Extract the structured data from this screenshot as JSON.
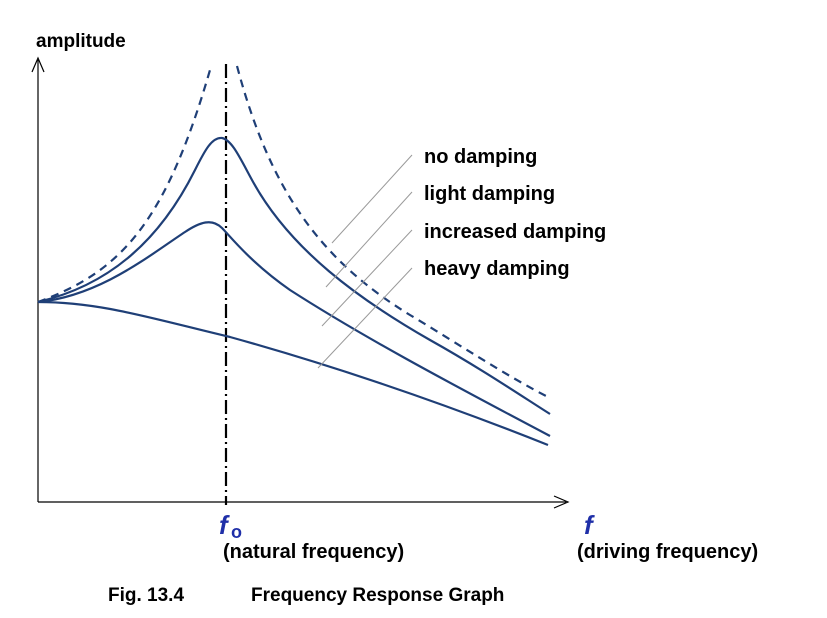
{
  "axes": {
    "y_label": "amplitude",
    "x_symbol": "f",
    "x_description": "(driving frequency)",
    "natural_symbol": "f",
    "natural_subscript": "o",
    "natural_description": "(natural frequency)"
  },
  "curves": [
    {
      "name": "no damping",
      "style": "dashed"
    },
    {
      "name": "light damping",
      "style": "solid"
    },
    {
      "name": "increased damping",
      "style": "solid"
    },
    {
      "name": "heavy damping",
      "style": "solid"
    }
  ],
  "caption": {
    "figure": "Fig. 13.4",
    "title": "Frequency Response Graph"
  },
  "colors": {
    "curve": "#1f3f77",
    "axis": "#000000",
    "symbol": "#1f2fa8",
    "leader": "#9a9a9a"
  }
}
